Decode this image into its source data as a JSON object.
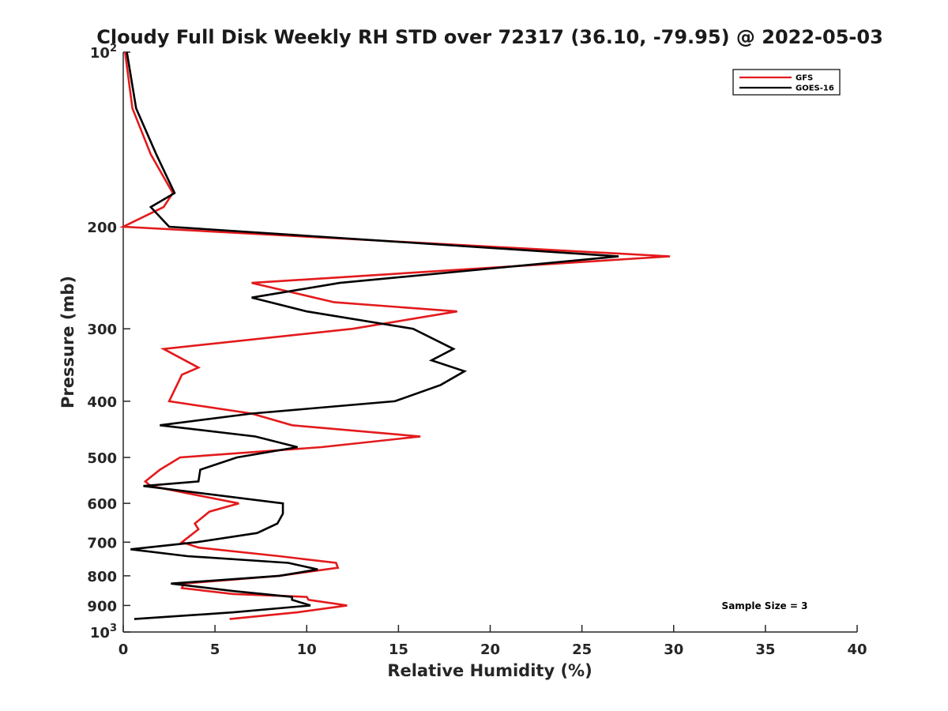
{
  "chart_data": {
    "type": "line",
    "title": "Cloudy Full Disk Weekly RH STD over 72317 (36.10, -79.95) @ 2022-05-03",
    "xlabel": "Relative Humidity (%)",
    "ylabel": "Pressure (mb)",
    "xlim": [
      0,
      40
    ],
    "ylim": [
      100,
      1000
    ],
    "y_scale": "log",
    "y_reversed": true,
    "grid": false,
    "legend_position": "top-right",
    "x_ticks": [
      "0",
      "5",
      "10",
      "15",
      "20",
      "25",
      "30",
      "35",
      "40"
    ],
    "y_ticks": [
      {
        "value": 100,
        "base": "10",
        "exp": "2"
      },
      {
        "value": 200,
        "label": "200"
      },
      {
        "value": 300,
        "label": "300"
      },
      {
        "value": 400,
        "label": "400"
      },
      {
        "value": 500,
        "label": "500"
      },
      {
        "value": 600,
        "label": "600"
      },
      {
        "value": 700,
        "label": "700"
      },
      {
        "value": 800,
        "label": "800"
      },
      {
        "value": 900,
        "label": "900"
      },
      {
        "value": 1000,
        "base": "10",
        "exp": "3"
      }
    ],
    "annotation": "Sample Size = 3",
    "series": [
      {
        "name": "GFS",
        "color": "#e31a1c",
        "points": [
          [
            0.1,
            100
          ],
          [
            0.5,
            125
          ],
          [
            1.5,
            150
          ],
          [
            2.7,
            175
          ],
          [
            2.2,
            185
          ],
          [
            0.0,
            200
          ],
          [
            29.8,
            225
          ],
          [
            7.0,
            250
          ],
          [
            11.5,
            270
          ],
          [
            18.2,
            280
          ],
          [
            12.5,
            300
          ],
          [
            2.2,
            325
          ],
          [
            4.1,
            350
          ],
          [
            3.2,
            360
          ],
          [
            2.5,
            400
          ],
          [
            7.0,
            420
          ],
          [
            9.2,
            440
          ],
          [
            16.2,
            460
          ],
          [
            10.8,
            480
          ],
          [
            3.1,
            500
          ],
          [
            2.0,
            525
          ],
          [
            1.2,
            550
          ],
          [
            1.5,
            560
          ],
          [
            6.3,
            600
          ],
          [
            4.7,
            620
          ],
          [
            3.9,
            650
          ],
          [
            4.1,
            665
          ],
          [
            3.2,
            700
          ],
          [
            4.1,
            715
          ],
          [
            8.5,
            740
          ],
          [
            11.6,
            760
          ],
          [
            11.7,
            775
          ],
          [
            8.5,
            800
          ],
          [
            3.3,
            825
          ],
          [
            3.2,
            840
          ],
          [
            6.0,
            860
          ],
          [
            10.0,
            870
          ],
          [
            10.1,
            880
          ],
          [
            12.2,
            900
          ],
          [
            9.5,
            925
          ],
          [
            5.8,
            950
          ]
        ]
      },
      {
        "name": "GOES-16",
        "color": "#000000",
        "points": [
          [
            0.2,
            100
          ],
          [
            0.7,
            125
          ],
          [
            1.8,
            150
          ],
          [
            2.8,
            175
          ],
          [
            1.5,
            185
          ],
          [
            2.5,
            200
          ],
          [
            27.0,
            225
          ],
          [
            11.8,
            250
          ],
          [
            7.0,
            265
          ],
          [
            10.0,
            280
          ],
          [
            15.8,
            300
          ],
          [
            18.0,
            325
          ],
          [
            16.8,
            340
          ],
          [
            18.6,
            355
          ],
          [
            17.3,
            375
          ],
          [
            14.8,
            400
          ],
          [
            7.0,
            420
          ],
          [
            2.0,
            440
          ],
          [
            7.2,
            460
          ],
          [
            9.5,
            480
          ],
          [
            6.2,
            500
          ],
          [
            4.2,
            525
          ],
          [
            4.1,
            550
          ],
          [
            1.1,
            560
          ],
          [
            8.7,
            600
          ],
          [
            8.7,
            625
          ],
          [
            8.4,
            650
          ],
          [
            7.3,
            675
          ],
          [
            4.0,
            700
          ],
          [
            0.4,
            720
          ],
          [
            3.5,
            740
          ],
          [
            9.0,
            760
          ],
          [
            10.6,
            780
          ],
          [
            8.5,
            800
          ],
          [
            2.6,
            825
          ],
          [
            6.0,
            850
          ],
          [
            9.2,
            870
          ],
          [
            9.2,
            880
          ],
          [
            10.2,
            900
          ],
          [
            6.0,
            925
          ],
          [
            0.6,
            950
          ]
        ]
      }
    ]
  }
}
